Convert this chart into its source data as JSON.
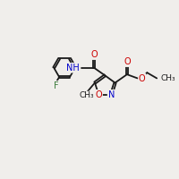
{
  "bg_color": "#f0eeeb",
  "bond_color": "#1a1a1a",
  "bond_width": 1.3,
  "dbo": 0.055,
  "figsize": [
    2.0,
    2.0
  ],
  "dpi": 100,
  "fs": 7.0,
  "O_color": "#cc0000",
  "N_color": "#0000cc",
  "F_color": "#3a7a3a",
  "dark": "#1a1a1a",
  "xlim": [
    0,
    10
  ],
  "ylim": [
    0,
    10
  ]
}
